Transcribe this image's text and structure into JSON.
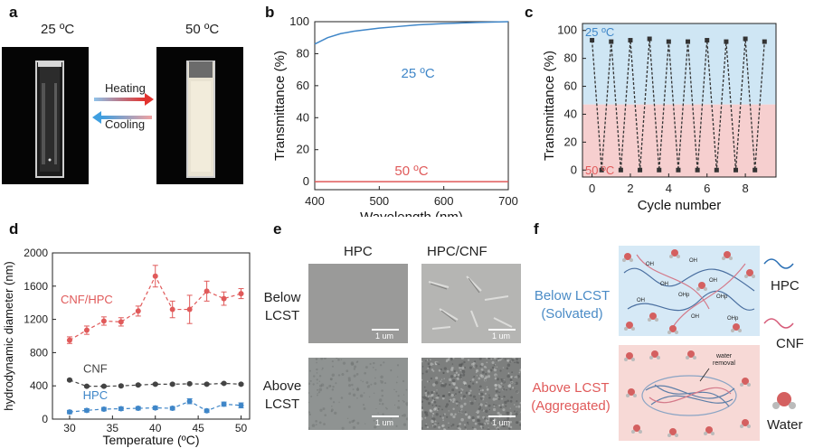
{
  "panels": {
    "a": {
      "label": "a",
      "left_temp": "25 ºC",
      "right_temp": "50 ºC",
      "heating": "Heating",
      "cooling": "Cooling"
    },
    "b": {
      "label": "b"
    },
    "c": {
      "label": "c"
    },
    "d": {
      "label": "d"
    },
    "e": {
      "label": "e",
      "col1": "HPC",
      "col2": "HPC/CNF",
      "row1a": "Below",
      "row1b": "LCST",
      "row2a": "Above",
      "row2b": "LCST",
      "scale": "1 um"
    },
    "f": {
      "label": "f",
      "below_a": "Below LCST",
      "below_b": "(Solvated)",
      "above_a": "Above LCST",
      "above_b": "(Aggregated)",
      "legend_hpc": "HPC",
      "legend_cnf": "CNF",
      "legend_water": "Water",
      "water_removal_a": "water",
      "water_removal_b": "removal",
      "oh": "OH",
      "ohp": "OHp"
    }
  },
  "colors": {
    "blue": "#3f86c8",
    "red": "#e05a5a",
    "gray": "#444444",
    "light_blue": "#cfe6f4",
    "light_red": "#f6cfcf"
  },
  "chart_data": [
    {
      "id": "b",
      "type": "line",
      "xlabel": "Wavelength (nm)",
      "ylabel": "Transmittance (%)",
      "xlim": [
        400,
        700
      ],
      "ylim": [
        -5,
        100
      ],
      "xticks": [
        400,
        500,
        600,
        700
      ],
      "yticks": [
        0,
        20,
        40,
        60,
        80,
        100
      ],
      "series": [
        {
          "name": "25 ºC",
          "color": "#3f86c8",
          "x": [
            400,
            420,
            440,
            460,
            480,
            500,
            530,
            560,
            600,
            650,
            700
          ],
          "y": [
            86,
            90,
            92.5,
            94,
            95,
            96,
            97,
            98,
            98.8,
            99.5,
            100
          ]
        },
        {
          "name": "50 ºC",
          "color": "#e05a5a",
          "x": [
            400,
            500,
            600,
            700
          ],
          "y": [
            0,
            0,
            0,
            0
          ]
        }
      ]
    },
    {
      "id": "c",
      "type": "line",
      "xlabel": "Cycle number",
      "ylabel": "Transmittance (%)",
      "xlim": [
        -0.5,
        9.6
      ],
      "ylim": [
        -5,
        105
      ],
      "xticks": [
        0,
        2,
        4,
        6,
        8
      ],
      "yticks": [
        0,
        20,
        40,
        60,
        80,
        100
      ],
      "annotations": [
        "25 ºC",
        "50 ºC"
      ],
      "series": [
        {
          "name": "",
          "x": [
            0,
            0.5,
            1,
            1.5,
            2,
            2.5,
            3,
            3.5,
            4,
            4.5,
            5,
            5.5,
            6,
            6.5,
            7,
            7.5,
            8,
            8.5,
            9
          ],
          "y": [
            93,
            0,
            92,
            0,
            93,
            0,
            94,
            0,
            92,
            0,
            92,
            0,
            93,
            0,
            92,
            0,
            94,
            0,
            92
          ]
        }
      ]
    },
    {
      "id": "d",
      "type": "line",
      "xlabel": "Temperature (ºC)",
      "ylabel": "hydrodynamic diameter (nm)",
      "xlim": [
        28,
        51
      ],
      "ylim": [
        0,
        2000
      ],
      "xticks": [
        30,
        35,
        40,
        45,
        50
      ],
      "yticks": [
        0,
        400,
        800,
        1200,
        1600,
        2000
      ],
      "x": [
        30,
        32,
        34,
        36,
        38,
        40,
        42,
        44,
        46,
        48,
        50
      ],
      "series": [
        {
          "name": "CNF/HPC",
          "color": "#e05a5a",
          "values": [
            950,
            1070,
            1180,
            1170,
            1300,
            1720,
            1320,
            1320,
            1540,
            1450,
            1510
          ],
          "err": [
            40,
            50,
            50,
            50,
            60,
            130,
            100,
            170,
            120,
            80,
            60
          ]
        },
        {
          "name": "CNF",
          "color": "#444444",
          "values": [
            470,
            395,
            395,
            400,
            410,
            420,
            420,
            425,
            420,
            430,
            420
          ],
          "err": [
            10,
            10,
            10,
            10,
            10,
            10,
            10,
            10,
            10,
            10,
            10
          ]
        },
        {
          "name": "HPC",
          "color": "#3f86c8",
          "values": [
            85,
            105,
            120,
            125,
            130,
            135,
            130,
            215,
            100,
            180,
            165
          ],
          "err": [
            20,
            20,
            20,
            20,
            20,
            20,
            20,
            30,
            20,
            25,
            30
          ]
        }
      ]
    }
  ]
}
